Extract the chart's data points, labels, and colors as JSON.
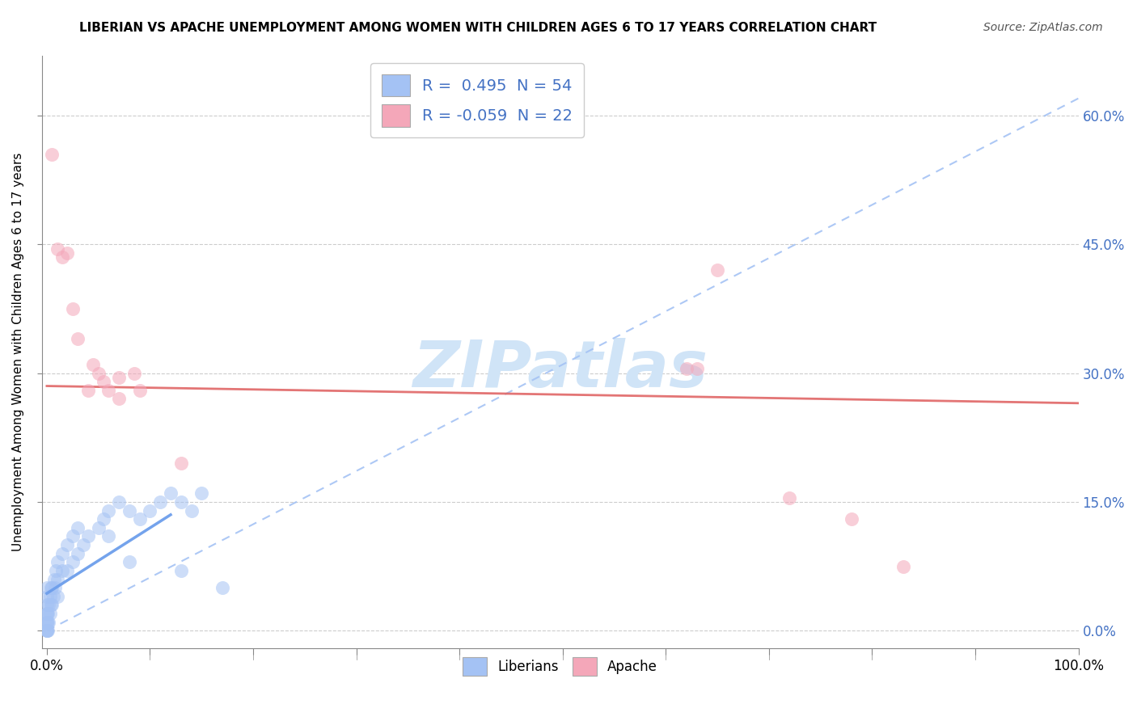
{
  "title": "LIBERIAN VS APACHE UNEMPLOYMENT AMONG WOMEN WITH CHILDREN AGES 6 TO 17 YEARS CORRELATION CHART",
  "source": "Source: ZipAtlas.com",
  "ylabel": "Unemployment Among Women with Children Ages 6 to 17 years",
  "legend_labels": [
    "Liberians",
    "Apache"
  ],
  "liberian_R": 0.495,
  "liberian_N": 54,
  "apache_R": -0.059,
  "apache_N": 22,
  "blue_scatter_color": "#a4c2f4",
  "pink_scatter_color": "#f4a7b9",
  "blue_line_color": "#6d9eeb",
  "pink_line_color": "#e06666",
  "blue_dashed_color": "#a4c2f4",
  "watermark_color": "#d0e4f7",
  "xlim": [
    0.0,
    1.0
  ],
  "ylim": [
    0.0,
    0.65
  ],
  "x_ticks": [
    0.0,
    0.1,
    0.2,
    0.3,
    0.4,
    0.5,
    0.6,
    0.7,
    0.8,
    0.9,
    1.0
  ],
  "y_ticks": [
    0.0,
    0.15,
    0.3,
    0.45,
    0.6
  ],
  "blue_x": [
    0.0,
    0.0,
    0.0,
    0.0,
    0.0,
    0.0,
    0.0,
    0.0,
    0.0,
    0.0,
    0.001,
    0.001,
    0.001,
    0.002,
    0.002,
    0.003,
    0.003,
    0.004,
    0.004,
    0.005,
    0.005,
    0.006,
    0.007,
    0.008,
    0.009,
    0.01,
    0.01,
    0.01,
    0.015,
    0.015,
    0.02,
    0.02,
    0.025,
    0.025,
    0.03,
    0.03,
    0.035,
    0.04,
    0.05,
    0.055,
    0.06,
    0.07,
    0.08,
    0.09,
    0.1,
    0.11,
    0.12,
    0.13,
    0.14,
    0.15,
    0.06,
    0.08,
    0.13,
    0.17
  ],
  "blue_y": [
    0.0,
    0.0,
    0.0,
    0.01,
    0.01,
    0.02,
    0.02,
    0.03,
    0.04,
    0.05,
    0.0,
    0.01,
    0.02,
    0.01,
    0.03,
    0.02,
    0.04,
    0.03,
    0.05,
    0.03,
    0.05,
    0.04,
    0.06,
    0.05,
    0.07,
    0.04,
    0.06,
    0.08,
    0.07,
    0.09,
    0.07,
    0.1,
    0.08,
    0.11,
    0.09,
    0.12,
    0.1,
    0.11,
    0.12,
    0.13,
    0.14,
    0.15,
    0.14,
    0.13,
    0.14,
    0.15,
    0.16,
    0.15,
    0.14,
    0.16,
    0.11,
    0.08,
    0.07,
    0.05
  ],
  "pink_x": [
    0.005,
    0.01,
    0.015,
    0.02,
    0.025,
    0.03,
    0.04,
    0.045,
    0.05,
    0.055,
    0.06,
    0.07,
    0.07,
    0.085,
    0.09,
    0.13,
    0.62,
    0.63,
    0.65,
    0.72,
    0.78,
    0.83
  ],
  "pink_y": [
    0.555,
    0.445,
    0.435,
    0.44,
    0.375,
    0.34,
    0.28,
    0.31,
    0.3,
    0.29,
    0.28,
    0.295,
    0.27,
    0.3,
    0.28,
    0.195,
    0.305,
    0.305,
    0.42,
    0.155,
    0.13,
    0.075
  ],
  "blue_line_x_start": 0.0,
  "blue_line_y_start": 0.0,
  "blue_line_x_end": 1.0,
  "blue_line_y_end": 0.62,
  "pink_line_y_at_0": 0.285,
  "pink_line_y_at_1": 0.265
}
